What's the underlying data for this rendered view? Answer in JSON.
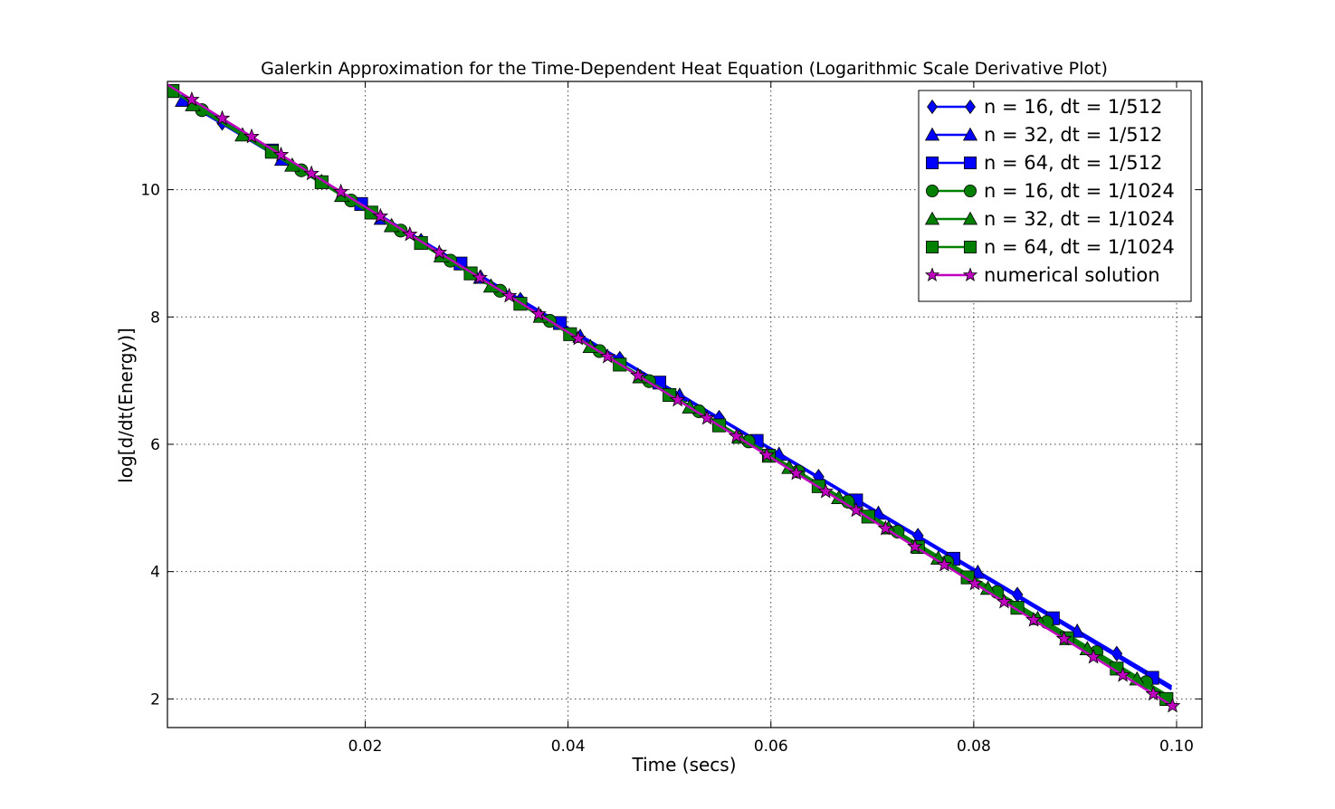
{
  "chart_data": {
    "type": "line",
    "title": "Galerkin Approximation for the Time-Dependent Heat Equation (Logarithmic Scale Derivative Plot)",
    "xlabel": "Time (secs)",
    "ylabel": "log[d/dt(Energy)]",
    "xlim": [
      0.0005,
      0.1025
    ],
    "ylim": [
      1.55,
      11.7
    ],
    "xticks": [
      0.02,
      0.04,
      0.06,
      0.08,
      0.1
    ],
    "xtick_labels": [
      "0.02",
      "0.04",
      "0.06",
      "0.08",
      "0.10"
    ],
    "yticks": [
      2,
      4,
      6,
      8,
      10
    ],
    "ytick_labels": [
      "2",
      "4",
      "6",
      "8",
      "10"
    ],
    "grid": true,
    "legend_position": "top-right",
    "series": [
      {
        "name": "n = 16, dt = 1/512",
        "color": "#0000ff",
        "marker": "diamond",
        "line": [
          [
            0.0059,
            11.05
          ],
          [
            0.0995,
            2.2
          ]
        ],
        "marker_x": [
          0.0059,
          0.0157,
          0.0255,
          0.0353,
          0.0451,
          0.0549,
          0.0647,
          0.0745,
          0.0843,
          0.0941
        ]
      },
      {
        "name": "n = 32, dt = 1/512",
        "color": "#0000ff",
        "marker": "triangle",
        "line": [
          [
            0.002,
            11.4
          ],
          [
            0.0995,
            2.18
          ]
        ],
        "marker_x": [
          0.002,
          0.0118,
          0.0216,
          0.0314,
          0.0412,
          0.051,
          0.0608,
          0.0706,
          0.0804,
          0.0902
        ]
      },
      {
        "name": "n = 64, dt = 1/512",
        "color": "#0000ff",
        "marker": "square",
        "line": [
          [
            0.001,
            11.55
          ],
          [
            0.0995,
            2.15
          ]
        ],
        "marker_x": [
          0.001,
          0.0108,
          0.0196,
          0.0294,
          0.0392,
          0.049,
          0.0586,
          0.0684,
          0.078,
          0.0878,
          0.0976
        ]
      },
      {
        "name": "n = 16, dt = 1/1024",
        "color": "#008000",
        "marker": "circle",
        "line": [
          [
            0.0039,
            11.25
          ],
          [
            0.0995,
            2.02
          ]
        ],
        "marker_x": [
          0.0039,
          0.0137,
          0.0186,
          0.0235,
          0.0284,
          0.0333,
          0.0382,
          0.0431,
          0.048,
          0.0529,
          0.0578,
          0.0627,
          0.0676,
          0.0725,
          0.0774,
          0.0823,
          0.0872,
          0.0921,
          0.097
        ]
      },
      {
        "name": "n = 32, dt = 1/1024",
        "color": "#008000",
        "marker": "triangle",
        "line": [
          [
            0.003,
            11.33
          ],
          [
            0.0995,
            1.98
          ]
        ],
        "marker_x": [
          0.003,
          0.0079,
          0.0128,
          0.0177,
          0.0226,
          0.0275,
          0.0324,
          0.0373,
          0.0422,
          0.0471,
          0.052,
          0.0569,
          0.0618,
          0.0667,
          0.0716,
          0.0765,
          0.0814,
          0.0863,
          0.0912,
          0.0961
        ]
      },
      {
        "name": "n = 64, dt = 1/1024",
        "color": "#008000",
        "marker": "square",
        "line": [
          [
            0.001,
            11.55
          ],
          [
            0.0995,
            1.95
          ]
        ],
        "marker_x": [
          0.001,
          0.0108,
          0.0157,
          0.0206,
          0.0255,
          0.0304,
          0.0353,
          0.0402,
          0.0451,
          0.05,
          0.0549,
          0.0598,
          0.0647,
          0.0696,
          0.0745,
          0.0794,
          0.0843,
          0.0892,
          0.0941,
          0.099
        ]
      },
      {
        "name": "numerical solution",
        "color": "#bf00bf",
        "marker": "star",
        "line": [
          [
            0.0,
            11.7
          ],
          [
            0.0995,
            1.9
          ]
        ],
        "marker_x": [
          0.0029,
          0.0059,
          0.0088,
          0.0117,
          0.0147,
          0.0176,
          0.0215,
          0.0244,
          0.0273,
          0.0313,
          0.0342,
          0.0371,
          0.041,
          0.0439,
          0.0469,
          0.0508,
          0.0537,
          0.0566,
          0.0596,
          0.0625,
          0.0654,
          0.0684,
          0.0713,
          0.0742,
          0.0771,
          0.0801,
          0.083,
          0.0859,
          0.0889,
          0.0918,
          0.0947,
          0.0977,
          0.0996
        ]
      }
    ]
  }
}
